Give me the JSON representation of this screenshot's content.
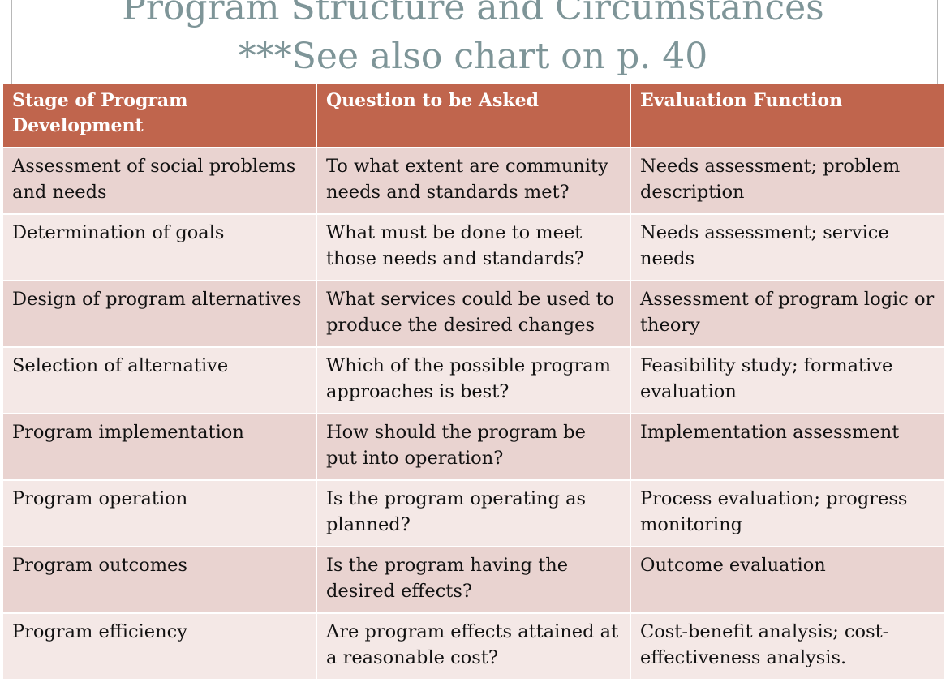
{
  "title": {
    "line1": "Program Structure and Circumstances",
    "line2": "***See also chart on p. 40"
  },
  "table": {
    "headers": [
      "Stage of Program Development",
      "Question to be Asked",
      "Evaluation Function"
    ],
    "rows": [
      [
        "Assessment of social problems and needs",
        "To what extent are community needs and standards met?",
        "Needs assessment; problem description"
      ],
      [
        "Determination of goals",
        "What must be done to meet those needs and standards?",
        "Needs assessment; service needs"
      ],
      [
        "Design of program alternatives",
        "What services could be used to produce the desired changes",
        "Assessment of program logic or theory"
      ],
      [
        "Selection of alternative",
        "Which of the possible program approaches is best?",
        "Feasibility study; formative evaluation"
      ],
      [
        "Program implementation",
        "How should the program be put into operation?",
        "Implementation assessment"
      ],
      [
        "Program operation",
        "Is the program operating as planned?",
        "Process evaluation; progress monitoring"
      ],
      [
        "Program outcomes",
        "Is the program having the desired effects?",
        "Outcome evaluation"
      ],
      [
        "Program efficiency",
        "Are program effects attained at a reasonable cost?",
        "Cost-benefit analysis; cost-effectiveness analysis."
      ]
    ]
  },
  "colors": {
    "header_background": "#c0654d",
    "row_odd": "#e9d3d0",
    "row_even": "#f4e8e6",
    "title_text": "#7e9598"
  }
}
